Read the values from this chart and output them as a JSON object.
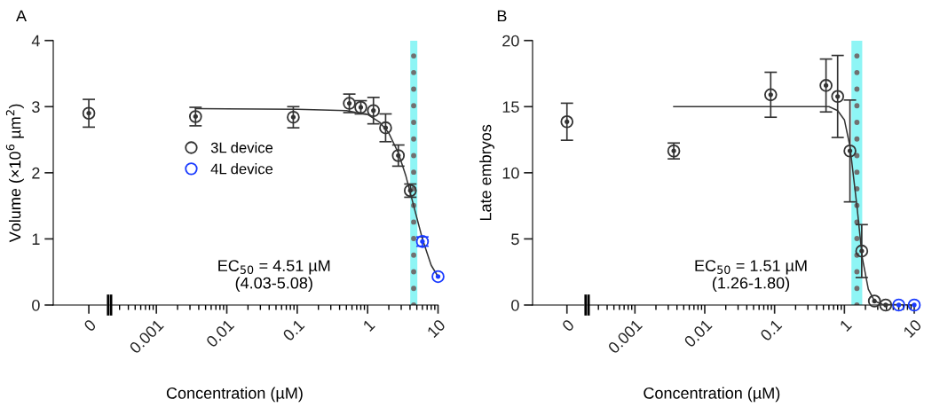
{
  "chart_data": [
    {
      "type": "scatter",
      "title": "A",
      "ylabel": "Volume (×10$^{6}$ µm$^{2}$)",
      "categories": [
        "0"
      ],
      "ylim": [
        0,
        4
      ],
      "yticks": [
        0,
        1,
        2,
        3,
        4
      ],
      "grid": false,
      "marker": "circle",
      "series": [
        {
          "color": "#333333",
          "values": [
            2.9
          ],
          "errors": [
            0.21
          ]
        }
      ]
    },
    {
      "type": "scatter",
      "xlabel": "Concentration (µM)",
      "log": "x",
      "xlim": [
        0.00022,
        10
      ],
      "xticks": [
        0.001,
        0.01,
        0.1,
        1,
        10
      ],
      "ylim": [
        0,
        4
      ],
      "tick_labels": "x",
      "grid": false,
      "marker": "circle",
      "legend": "center",
      "series": [
        {
          "name": "3L device",
          "color": "#333333",
          "x": [
            0.0036,
            0.088,
            0.55,
            0.8,
            1.21,
            1.8,
            2.73,
            4.04
          ],
          "values": [
            2.85,
            2.84,
            3.05,
            2.99,
            2.94,
            2.68,
            2.26,
            1.73
          ],
          "errors": [
            0.14,
            0.16,
            0.14,
            0.1,
            0.2,
            0.21,
            0.16,
            0.1
          ]
        },
        {
          "name": "4L device",
          "color": "#1a3bff",
          "x": [
            6.0,
            10
          ],
          "values": [
            0.96,
            0.43
          ],
          "errors": [
            0.07,
            null
          ]
        },
        {
          "type": "line",
          "marker": "none",
          "color": "#333333",
          "x": [
            0.0036,
            0.1,
            0.5,
            1,
            1.5,
            2,
            2.73,
            3.5,
            4.51,
            6,
            8,
            10
          ],
          "values": [
            2.97,
            2.96,
            2.94,
            2.88,
            2.76,
            2.6,
            2.3,
            1.95,
            1.5,
            1.0,
            0.6,
            0.43
          ]
        }
      ],
      "ref_lines": [
        {
          "axis": "x",
          "value": 4.51,
          "color": "#707070",
          "line_style": "dotted"
        }
      ],
      "bands": [
        {
          "axis": "x",
          "from": 4.03,
          "to": 5.08,
          "color": "#8ef5f5"
        }
      ],
      "annotations": [
        "EC$_{50}$ = 4.51 µM\n(4.03-5.08)"
      ]
    },
    {
      "type": "scatter",
      "title": "B",
      "ylabel": "Late embryos",
      "categories": [
        "0"
      ],
      "ylim": [
        0,
        20
      ],
      "yticks": [
        0,
        5,
        10,
        15,
        20
      ],
      "grid": false,
      "marker": "circle",
      "series": [
        {
          "color": "#333333",
          "values": [
            13.86
          ],
          "errors": [
            1.4
          ]
        }
      ]
    },
    {
      "type": "scatter",
      "xlabel": "Concentration (µM)",
      "log": "x",
      "xlim": [
        0.00021,
        10
      ],
      "xticks": [
        0.001,
        0.01,
        0.1,
        1,
        10
      ],
      "ylim": [
        0,
        20
      ],
      "tick_labels": "x",
      "grid": false,
      "marker": "circle",
      "series": [
        {
          "color": "#333333",
          "x": [
            0.0036,
            0.088,
            0.545,
            0.8,
            1.2,
            1.77,
            2.69,
            3.9
          ],
          "values": [
            11.65,
            15.9,
            16.6,
            15.77,
            11.65,
            4.08,
            0.3,
            0
          ],
          "errors": [
            0.6,
            1.7,
            2.0,
            3.1,
            3.85,
            2.0,
            null,
            null
          ]
        },
        {
          "color": "#1a3bff",
          "x": [
            6.0,
            10
          ],
          "values": [
            0,
            0
          ]
        },
        {
          "type": "line",
          "marker": "none",
          "color": "#333333",
          "x": [
            0.0036,
            0.6,
            0.8,
            1,
            1.2,
            1.51,
            1.8,
            2.2,
            2.7,
            3.5,
            10
          ],
          "values": [
            15,
            15,
            14.7,
            14.0,
            12.0,
            7.5,
            3.6,
            1.2,
            0.3,
            0.05,
            0
          ]
        }
      ],
      "ref_lines": [
        {
          "axis": "x",
          "value": 1.51,
          "color": "#707070",
          "line_style": "dotted"
        }
      ],
      "bands": [
        {
          "axis": "x",
          "from": 1.26,
          "to": 1.8,
          "color": "#8ef5f5"
        }
      ],
      "annotations": [
        "EC$_{50}$ = 1.51 µM\n(1.26-1.80)"
      ]
    }
  ]
}
